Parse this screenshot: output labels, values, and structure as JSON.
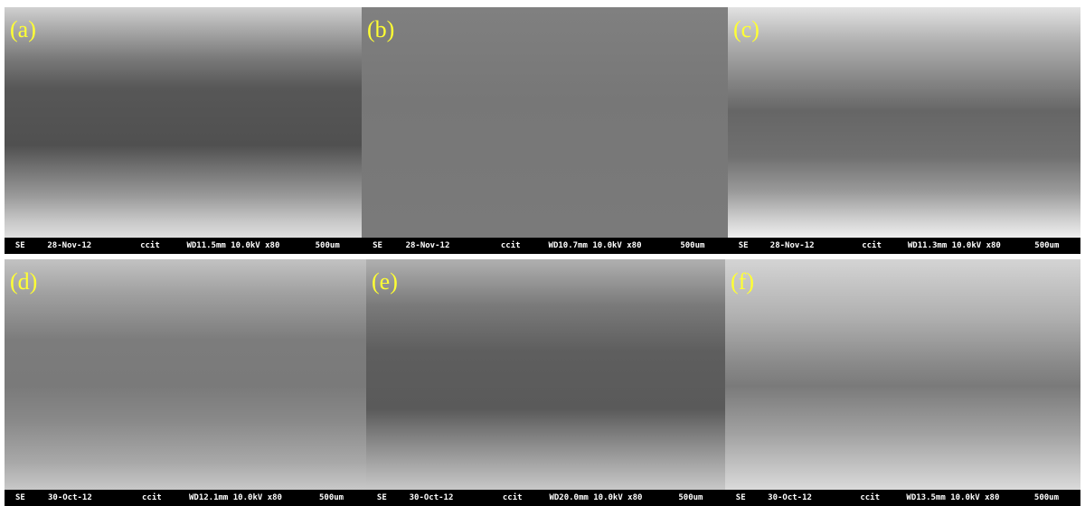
{
  "panels": [
    {
      "label": "(a)",
      "detector": "SE",
      "date": "28-Nov-12",
      "site": "ccit",
      "params": "WD11.5mm 10.0kV x80",
      "scale": "500um"
    },
    {
      "label": "(b)",
      "detector": "SE",
      "date": "28-Nov-12",
      "site": "ccit",
      "params": "WD10.7mm 10.0kV x80",
      "scale": "500um"
    },
    {
      "label": "(c)",
      "detector": "SE",
      "date": "28-Nov-12",
      "site": "ccit",
      "params": "WD11.3mm 10.0kV x80",
      "scale": "500um"
    },
    {
      "label": "(d)",
      "detector": "SE",
      "date": "30-Oct-12",
      "site": "ccit",
      "params": "WD12.1mm 10.0kV x80",
      "scale": "500um"
    },
    {
      "label": "(e)",
      "detector": "SE",
      "date": "30-Oct-12",
      "site": "ccit",
      "params": "WD20.0mm 10.0kV x80",
      "scale": "500um"
    },
    {
      "label": "(f)",
      "detector": "SE",
      "date": "30-Oct-12",
      "site": "ccit",
      "params": "WD13.5mm 10.0kV x80",
      "scale": "500um"
    }
  ]
}
